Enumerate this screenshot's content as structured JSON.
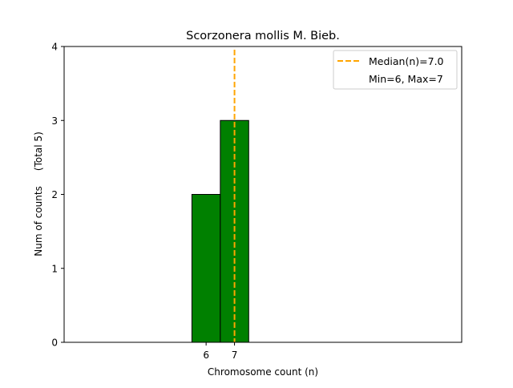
{
  "chart_data": {
    "type": "bar",
    "title": "Scorzonera mollis M. Bieb.",
    "xlabel": "Chromosome count (n)",
    "ylabel": "Num of counts     (Total 5)",
    "categories": [
      "6",
      "7"
    ],
    "x": [
      6,
      7
    ],
    "values": [
      2,
      3
    ],
    "xlim": [
      1,
      15
    ],
    "ylim": [
      0,
      4
    ],
    "yticks": [
      0,
      1,
      2,
      3,
      4
    ],
    "xticks": [
      6,
      7
    ],
    "bar_width": 1,
    "grid": false,
    "legend_position": "top-right",
    "median": 7.0,
    "legend": {
      "median_label": "Median(n)=7.0",
      "range_label": "Min=6, Max=7"
    },
    "colors": {
      "bar_fill": "#008000",
      "bar_edge": "#000000",
      "median_line": "#ffa500"
    }
  }
}
